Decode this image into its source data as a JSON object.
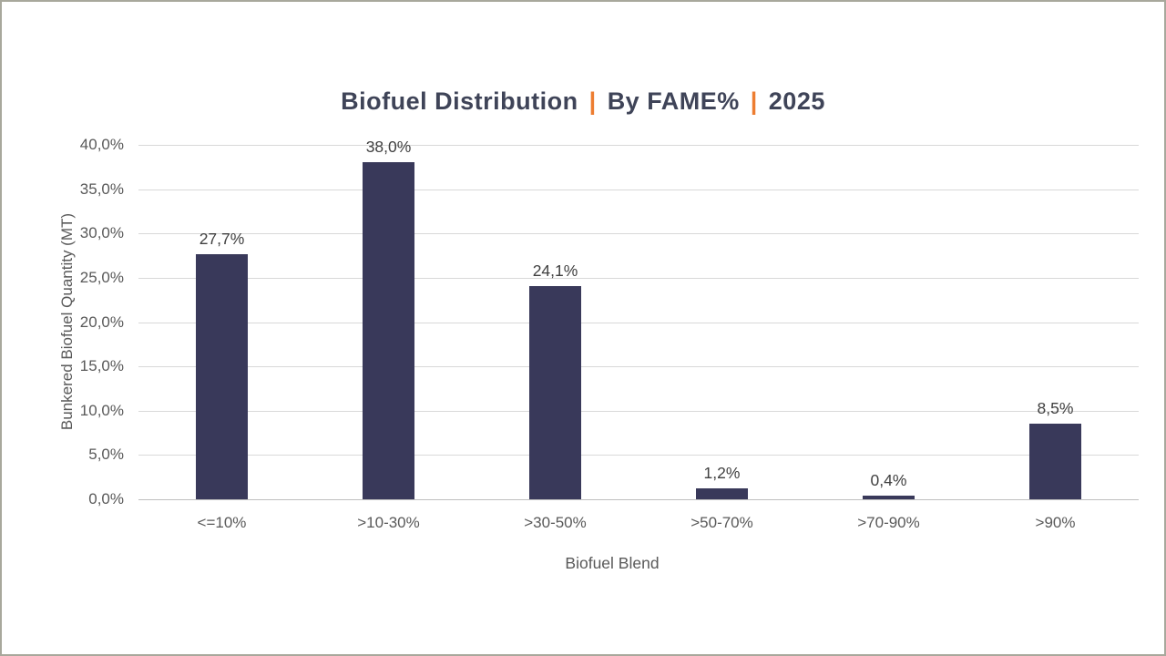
{
  "page": {
    "background_color": "#ffffff",
    "border_color": "#a8a89c"
  },
  "chart_data": {
    "type": "bar",
    "title": {
      "segments": [
        "Biofuel Distribution",
        "By FAME%",
        "2025"
      ],
      "separator": "|",
      "text_color": "#3f4458",
      "separator_color": "#ED7D31"
    },
    "categories": [
      "<=10%",
      ">10-30%",
      ">30-50%",
      ">50-70%",
      ">70-90%",
      ">90%"
    ],
    "values": [
      27.7,
      38.0,
      24.1,
      1.2,
      0.4,
      8.5
    ],
    "value_labels": [
      "27,7%",
      "38,0%",
      "24,1%",
      "1,2%",
      "0,4%",
      "8,5%"
    ],
    "xlabel": "Biofuel Blend",
    "ylabel": "Bunkered Biofuel Quantity (MT)",
    "ylim": [
      0,
      40
    ],
    "ytick_step": 5,
    "ytick_labels": [
      "0,0%",
      "5,0%",
      "10,0%",
      "15,0%",
      "20,0%",
      "25,0%",
      "30,0%",
      "35,0%",
      "40,0%"
    ],
    "grid": true,
    "legend": "none",
    "colors": {
      "bar": "#39395a",
      "gridline": "#d9d9d9",
      "axis_line": "#bfbfbf",
      "tick_label": "#595959",
      "data_label": "#404040"
    }
  }
}
